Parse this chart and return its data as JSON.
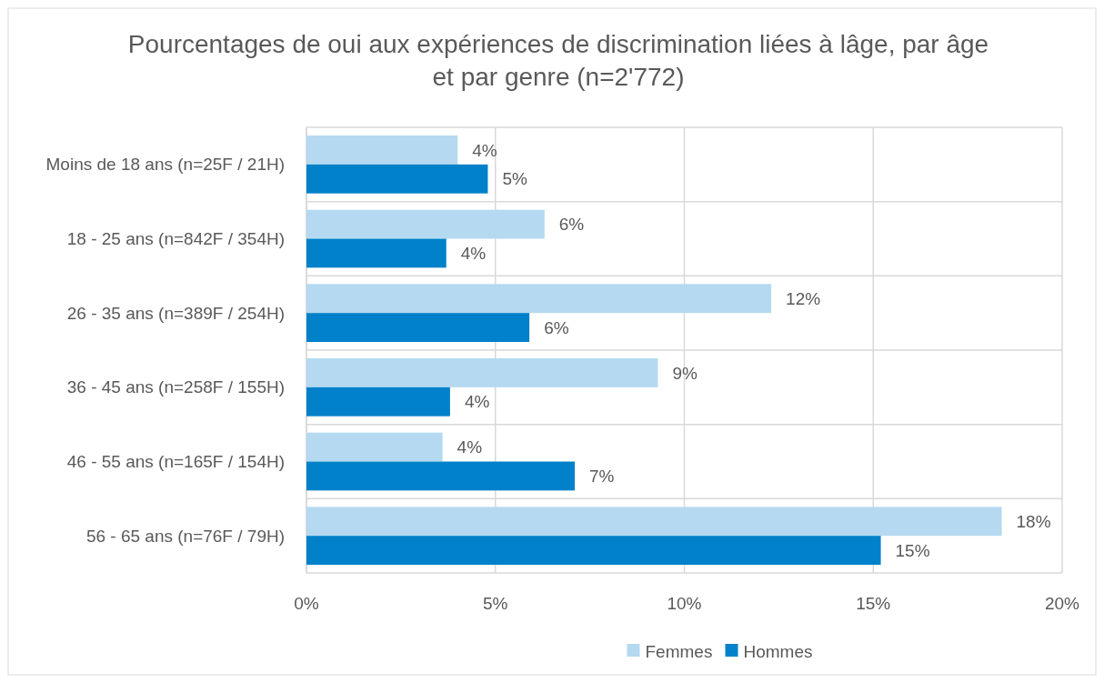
{
  "chart_data": {
    "type": "bar",
    "orientation": "horizontal",
    "title": "Pourcentages de oui aux expériences de discrimination liées à lâge, par âge et par genre (n=2'772)",
    "categories": [
      "Moins de 18 ans (n=25F / 21H)",
      "18 - 25 ans (n=842F / 354H)",
      "26 - 35 ans (n=389F / 254H)",
      "36 - 45 ans (n=258F / 155H)",
      "46 - 55 ans (n=165F / 154H)",
      "56 - 65 ans (n=76F / 79H)"
    ],
    "series": [
      {
        "name": "Femmes",
        "color": "#b4d9f0",
        "values": [
          4.0,
          6.3,
          12.3,
          9.3,
          3.6,
          18.4
        ],
        "value_labels": [
          "4%",
          "6%",
          "12%",
          "9%",
          "4%",
          "18%"
        ]
      },
      {
        "name": "Hommes",
        "color": "#0081c9",
        "values": [
          4.8,
          3.7,
          5.9,
          3.8,
          7.1,
          15.2
        ],
        "value_labels": [
          "5%",
          "4%",
          "6%",
          "4%",
          "7%",
          "15%"
        ]
      }
    ],
    "xlim": [
      0,
      20
    ],
    "xticks": [
      {
        "value": 0,
        "label": "0%"
      },
      {
        "value": 5,
        "label": "5%"
      },
      {
        "value": 10,
        "label": "10%"
      },
      {
        "value": 15,
        "label": "15%"
      },
      {
        "value": 20,
        "label": "20%"
      }
    ],
    "grid": true,
    "legend": "bottom"
  }
}
